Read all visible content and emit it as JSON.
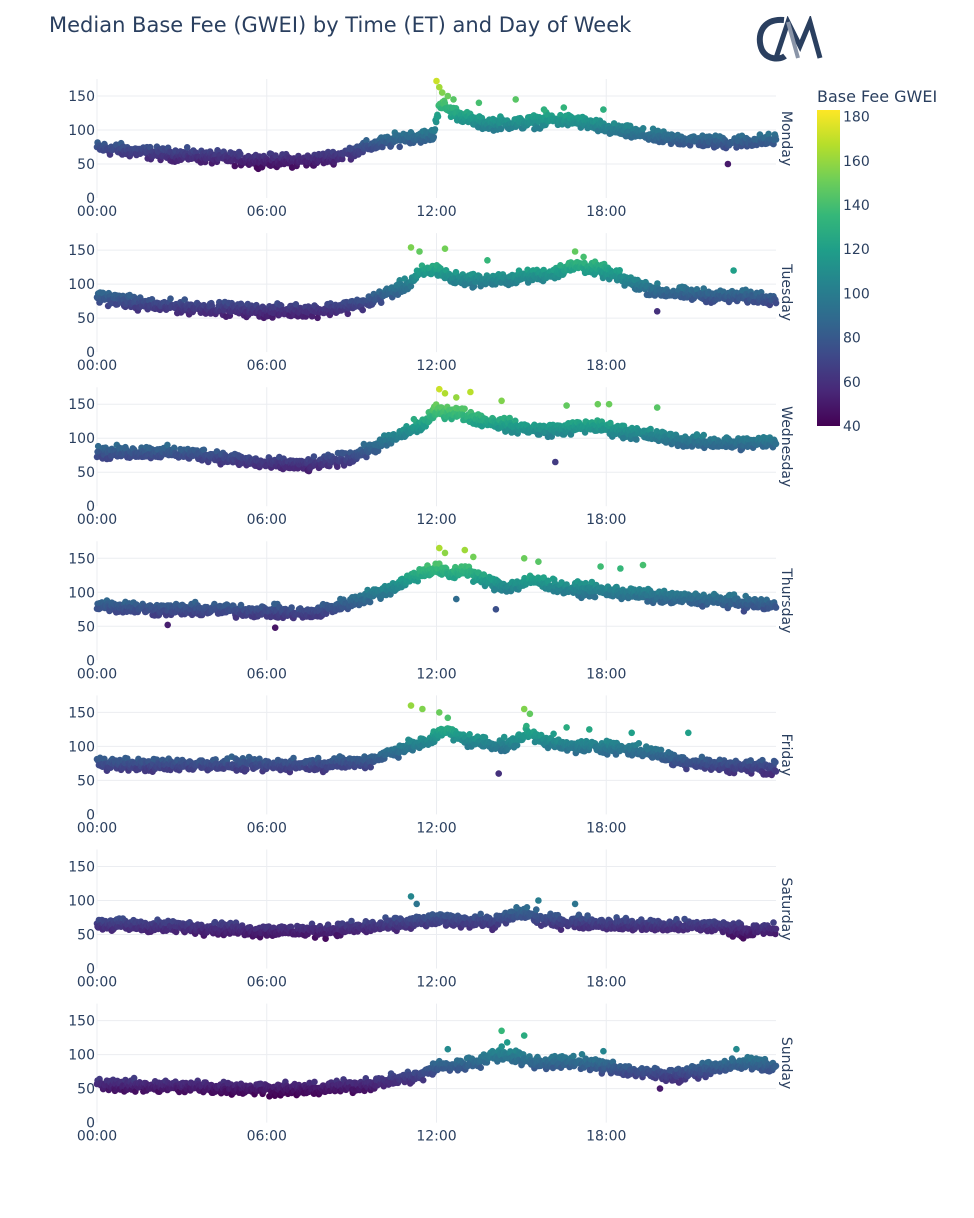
{
  "title": "Median Base Fee (GWEI) by Time (ET) and Day of Week",
  "logo_text": "CM",
  "chart_data": {
    "type": "scatter",
    "x_axis": {
      "ticks": [
        "00:00",
        "06:00",
        "12:00",
        "18:00"
      ],
      "tick_hours": [
        0,
        6,
        12,
        18
      ],
      "range_hours": [
        0,
        24
      ]
    },
    "y_axis": {
      "ticks": [
        0,
        50,
        100,
        150
      ],
      "range": [
        0,
        175
      ]
    },
    "grid": true,
    "colorbar": {
      "title": "Base Fee GWEI",
      "ticks": [
        40,
        60,
        80,
        100,
        120,
        140,
        160,
        180
      ],
      "range": [
        40,
        183
      ],
      "colorscale": "Viridis",
      "colors": [
        "#440154",
        "#482878",
        "#3e4989",
        "#31688e",
        "#26828e",
        "#1f9e89",
        "#35b779",
        "#6ece58",
        "#b5de2b",
        "#fde725"
      ]
    },
    "facets": [
      {
        "day": "Monday",
        "profile": [
          [
            0,
            74
          ],
          [
            2,
            66
          ],
          [
            4,
            60
          ],
          [
            6,
            55
          ],
          [
            7.5,
            55
          ],
          [
            8.5,
            62
          ],
          [
            10,
            80
          ],
          [
            11,
            90
          ],
          [
            11.9,
            92
          ],
          [
            12.1,
            140
          ],
          [
            12.5,
            128
          ],
          [
            13.5,
            110
          ],
          [
            15,
            110
          ],
          [
            16,
            115
          ],
          [
            17,
            113
          ],
          [
            18,
            102
          ],
          [
            20,
            88
          ],
          [
            22,
            82
          ],
          [
            24,
            85
          ]
        ],
        "highlights": [
          [
            12.0,
            172
          ],
          [
            12.1,
            163
          ],
          [
            12.2,
            155
          ],
          [
            12.4,
            150
          ],
          [
            12.6,
            145
          ],
          [
            13.5,
            140
          ],
          [
            14.8,
            145
          ],
          [
            15.8,
            130
          ],
          [
            16.5,
            133
          ],
          [
            17.9,
            130
          ],
          [
            22.3,
            50
          ]
        ]
      },
      {
        "day": "Tuesday",
        "profile": [
          [
            0,
            82
          ],
          [
            2,
            68
          ],
          [
            4,
            65
          ],
          [
            6,
            60
          ],
          [
            8,
            62
          ],
          [
            9.5,
            72
          ],
          [
            11,
            100
          ],
          [
            11.5,
            118
          ],
          [
            12,
            122
          ],
          [
            12.5,
            108
          ],
          [
            14,
            105
          ],
          [
            15,
            110
          ],
          [
            16,
            115
          ],
          [
            17,
            128
          ],
          [
            18,
            118
          ],
          [
            19,
            100
          ],
          [
            20,
            88
          ],
          [
            22,
            82
          ],
          [
            24,
            80
          ]
        ],
        "highlights": [
          [
            11.1,
            154
          ],
          [
            11.4,
            148
          ],
          [
            12.3,
            152
          ],
          [
            13.8,
            135
          ],
          [
            16.9,
            148
          ],
          [
            17.2,
            140
          ],
          [
            22.5,
            120
          ],
          [
            19.8,
            60
          ]
        ]
      },
      {
        "day": "Wednesday",
        "profile": [
          [
            0,
            78
          ],
          [
            2,
            80
          ],
          [
            4,
            75
          ],
          [
            6,
            62
          ],
          [
            7.5,
            60
          ],
          [
            9,
            72
          ],
          [
            10.5,
            100
          ],
          [
            11.5,
            120
          ],
          [
            12,
            140
          ],
          [
            12.7,
            138
          ],
          [
            13.5,
            128
          ],
          [
            15,
            115
          ],
          [
            16,
            112
          ],
          [
            17.5,
            118
          ],
          [
            19,
            108
          ],
          [
            21,
            95
          ],
          [
            22.5,
            92
          ],
          [
            24,
            95
          ]
        ],
        "highlights": [
          [
            12.1,
            172
          ],
          [
            12.3,
            166
          ],
          [
            13.2,
            168
          ],
          [
            12.7,
            160
          ],
          [
            14.3,
            155
          ],
          [
            16.6,
            148
          ],
          [
            17.7,
            150
          ],
          [
            18.1,
            150
          ],
          [
            19.8,
            145
          ],
          [
            11.2,
            128
          ],
          [
            16.2,
            65
          ],
          [
            18.6,
            100
          ]
        ]
      },
      {
        "day": "Thursday",
        "profile": [
          [
            0,
            82
          ],
          [
            2,
            75
          ],
          [
            4,
            74
          ],
          [
            6,
            72
          ],
          [
            7.5,
            68
          ],
          [
            9,
            85
          ],
          [
            10.5,
            108
          ],
          [
            11.5,
            130
          ],
          [
            12,
            135
          ],
          [
            12.5,
            125
          ],
          [
            13,
            135
          ],
          [
            13.5,
            120
          ],
          [
            14.5,
            108
          ],
          [
            15.5,
            118
          ],
          [
            16.5,
            105
          ],
          [
            18,
            102
          ],
          [
            20,
            92
          ],
          [
            22,
            88
          ],
          [
            24,
            80
          ]
        ],
        "highlights": [
          [
            12.1,
            165
          ],
          [
            12.3,
            158
          ],
          [
            13.0,
            162
          ],
          [
            13.3,
            152
          ],
          [
            15.1,
            150
          ],
          [
            15.6,
            145
          ],
          [
            17.8,
            138
          ],
          [
            18.5,
            135
          ],
          [
            19.3,
            140
          ],
          [
            2.5,
            52
          ],
          [
            6.3,
            48
          ],
          [
            14.1,
            75
          ],
          [
            12.7,
            90
          ]
        ]
      },
      {
        "day": "Friday",
        "profile": [
          [
            0,
            76
          ],
          [
            2,
            72
          ],
          [
            4,
            74
          ],
          [
            6,
            72
          ],
          [
            8,
            74
          ],
          [
            9.5,
            78
          ],
          [
            11,
            100
          ],
          [
            11.7,
            105
          ],
          [
            12.2,
            125
          ],
          [
            13,
            110
          ],
          [
            14.5,
            100
          ],
          [
            15.2,
            120
          ],
          [
            16.5,
            100
          ],
          [
            18,
            100
          ],
          [
            19.5,
            92
          ],
          [
            20.5,
            80
          ],
          [
            22,
            72
          ],
          [
            24,
            68
          ]
        ],
        "highlights": [
          [
            11.1,
            160
          ],
          [
            11.5,
            155
          ],
          [
            12.1,
            150
          ],
          [
            12.4,
            142
          ],
          [
            15.1,
            155
          ],
          [
            15.3,
            148
          ],
          [
            16.6,
            128
          ],
          [
            17.4,
            125
          ],
          [
            18.9,
            120
          ],
          [
            20.9,
            120
          ],
          [
            14.2,
            60
          ]
        ]
      },
      {
        "day": "Saturday",
        "profile": [
          [
            0,
            66
          ],
          [
            2,
            62
          ],
          [
            4,
            60
          ],
          [
            6,
            55
          ],
          [
            8,
            56
          ],
          [
            10,
            62
          ],
          [
            11.5,
            70
          ],
          [
            12.5,
            72
          ],
          [
            14,
            68
          ],
          [
            15,
            82
          ],
          [
            16,
            70
          ],
          [
            18,
            66
          ],
          [
            20,
            62
          ],
          [
            22,
            62
          ],
          [
            23,
            55
          ],
          [
            24,
            58
          ]
        ],
        "highlights": [
          [
            11.1,
            106
          ],
          [
            11.3,
            95
          ],
          [
            15.6,
            100
          ],
          [
            16.9,
            95
          ],
          [
            15.2,
            90
          ]
        ]
      },
      {
        "day": "Sunday",
        "profile": [
          [
            0,
            56
          ],
          [
            2,
            54
          ],
          [
            4,
            52
          ],
          [
            6,
            50
          ],
          [
            7.5,
            48
          ],
          [
            9,
            54
          ],
          [
            10.5,
            62
          ],
          [
            11.5,
            70
          ],
          [
            12,
            82
          ],
          [
            13,
            85
          ],
          [
            14.3,
            102
          ],
          [
            15.5,
            88
          ],
          [
            17,
            90
          ],
          [
            18,
            82
          ],
          [
            19.5,
            72
          ],
          [
            20.5,
            70
          ],
          [
            22,
            82
          ],
          [
            23,
            88
          ],
          [
            24,
            80
          ]
        ],
        "highlights": [
          [
            14.3,
            135
          ],
          [
            15.1,
            128
          ],
          [
            14.5,
            118
          ],
          [
            12.4,
            108
          ],
          [
            17.9,
            105
          ],
          [
            22.6,
            108
          ],
          [
            19.9,
            50
          ]
        ]
      }
    ]
  }
}
